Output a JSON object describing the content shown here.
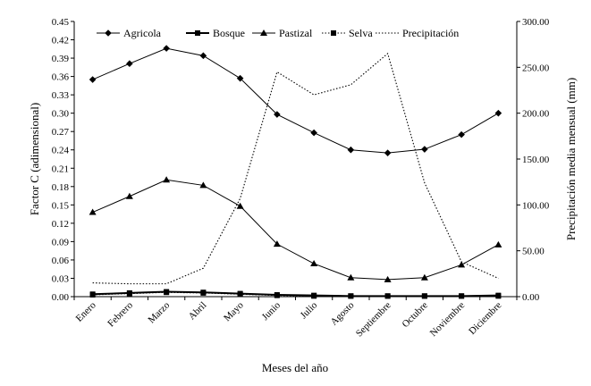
{
  "chart_data": {
    "type": "line",
    "title": "",
    "xlabel": "Meses del año",
    "ylabel": "Factor C (adimensional)",
    "y2label": "Precipitación media mensual (mm)",
    "categories": [
      "Enero",
      "Febrero",
      "Marzo",
      "Abril",
      "Mayo",
      "Junio",
      "Julio",
      "Agosto",
      "Septiembre",
      "Octubre",
      "Noviembre",
      "Diciembre"
    ],
    "ylim": [
      0,
      0.45
    ],
    "y2lim": [
      0,
      300
    ],
    "yticks": [
      "0.00",
      "0.03",
      "0.06",
      "0.09",
      "0.12",
      "0.15",
      "0.18",
      "0.21",
      "0.24",
      "0.27",
      "0.30",
      "0.33",
      "0.36",
      "0.39",
      "0.42",
      "0.45"
    ],
    "y2ticks": [
      "0.00",
      "50.00",
      "100.00",
      "150.00",
      "200.00",
      "250.00",
      "300.00"
    ],
    "grid": false,
    "legend_position": "top",
    "series": [
      {
        "name": "Agricola",
        "axis": "left",
        "marker": "diamond",
        "line": "solid",
        "color": "#000000",
        "values": [
          0.355,
          0.381,
          0.406,
          0.394,
          0.357,
          0.298,
          0.268,
          0.24,
          0.235,
          0.241,
          0.265,
          0.3
        ]
      },
      {
        "name": "Bosque",
        "axis": "left",
        "marker": "square",
        "line": "solid-thick",
        "color": "#000000",
        "values": [
          0.004,
          0.006,
          0.008,
          0.007,
          0.005,
          0.003,
          0.002,
          0.001,
          0.001,
          0.001,
          0.001,
          0.002
        ]
      },
      {
        "name": "Pastizal",
        "axis": "left",
        "marker": "triangle",
        "line": "solid",
        "color": "#000000",
        "values": [
          0.138,
          0.164,
          0.191,
          0.182,
          0.148,
          0.086,
          0.054,
          0.031,
          0.028,
          0.031,
          0.052,
          0.085
        ]
      },
      {
        "name": "Selva",
        "axis": "left",
        "marker": "square",
        "line": "dotted",
        "color": "#000000",
        "values": [
          0.003,
          0.005,
          0.007,
          0.006,
          0.004,
          0.002,
          0.001,
          0.001,
          0.001,
          0.001,
          0.001,
          0.001
        ]
      },
      {
        "name": "Precipitación",
        "axis": "right",
        "marker": "none",
        "line": "dotted",
        "color": "#000000",
        "values": [
          15,
          14,
          14,
          31,
          107,
          245,
          220,
          231,
          265,
          124,
          38,
          20
        ]
      }
    ]
  }
}
